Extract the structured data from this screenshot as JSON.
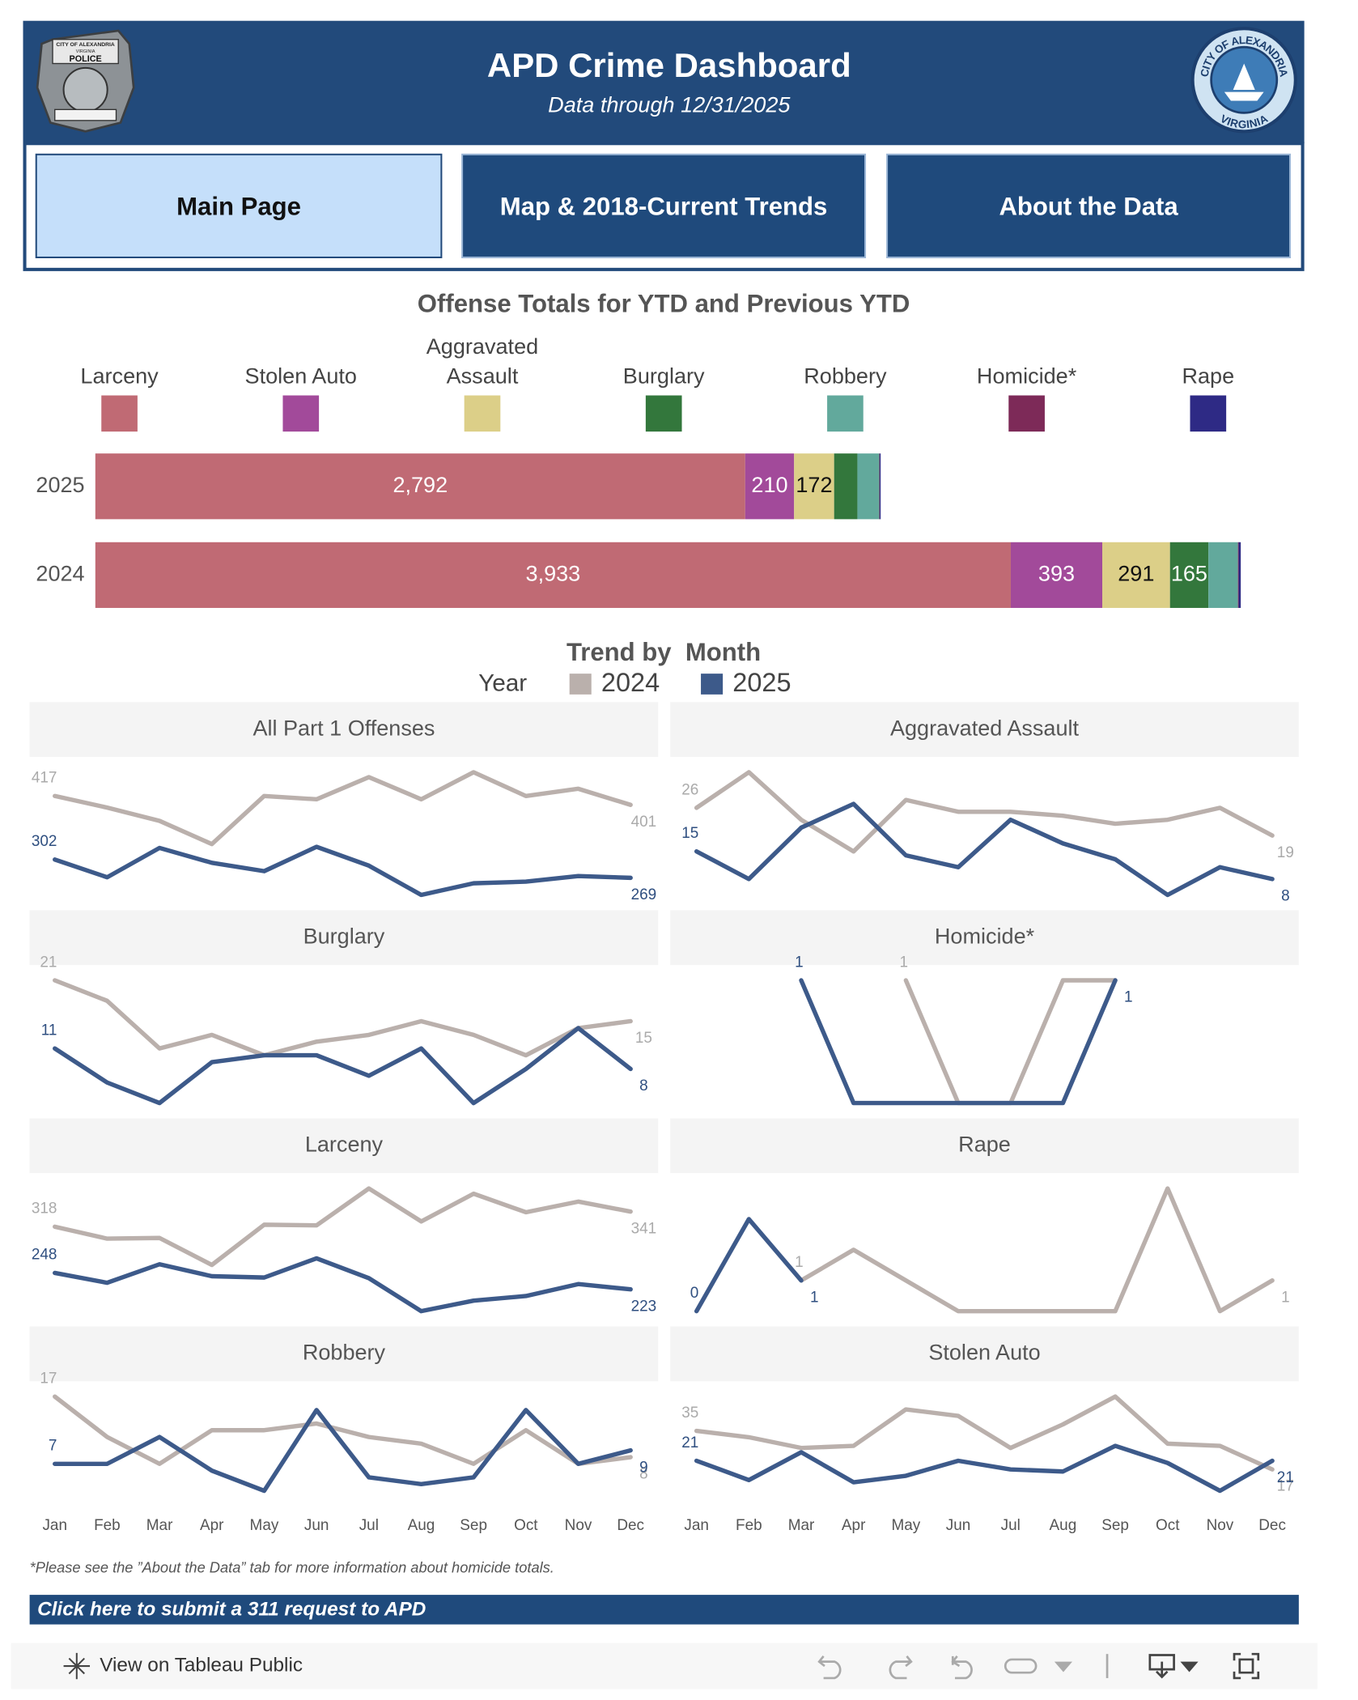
{
  "header": {
    "title": "APD Crime Dashboard",
    "subtitle": "Data through 12/31/2025",
    "badge_text": [
      "CITY OF ALEXANDRIA",
      "VIRGINIA",
      "POLICE"
    ],
    "seal_text": [
      "CITY OF ALEXANDRIA",
      "VIRGINIA"
    ]
  },
  "nav": [
    "Main Page",
    "Map & 2018-Current Trends",
    "About the Data"
  ],
  "chart_data": [
    {
      "type": "bar",
      "orientation": "horizontal",
      "stacked": true,
      "title": "Offense Totals for YTD and Previous YTD",
      "categories": [
        "2025",
        "2024"
      ],
      "series": [
        {
          "name": "Larceny",
          "color": "#c06a74",
          "values": [
            2792,
            3933
          ],
          "value_labels": [
            "2,792",
            "3,933"
          ]
        },
        {
          "name": "Stolen Auto",
          "color": "#a24a9a",
          "values": [
            210,
            393
          ]
        },
        {
          "name": "Aggravated Assault",
          "color": "#dccf88",
          "values": [
            172,
            291
          ]
        },
        {
          "name": "Burglary",
          "color": "#33773c",
          "values": [
            100,
            165
          ]
        },
        {
          "name": "Robbery",
          "color": "#62a99c",
          "values": [
            94,
            127
          ]
        },
        {
          "name": "Homicide*",
          "color": "#7d2a58",
          "values": [
            2,
            3
          ]
        },
        {
          "name": "Rape",
          "color": "#2e2a85",
          "values": [
            4,
            9
          ]
        }
      ]
    },
    {
      "type": "line",
      "title": "Trend by  Month",
      "legend_title": "Year",
      "categories": [
        "Jan",
        "Feb",
        "Mar",
        "Apr",
        "May",
        "Jun",
        "Jul",
        "Aug",
        "Sep",
        "Oct",
        "Nov",
        "Dec"
      ],
      "series": [
        {
          "name": "2024",
          "color": "#bab0ac"
        },
        {
          "name": "2025",
          "color": "#3d5a8a"
        }
      ],
      "panels": [
        {
          "title": "All Part 1 Offenses",
          "values": [
            [
              417,
              396,
              372,
              330,
              417,
              411,
              451,
              411,
              460,
              417,
              430,
              401
            ],
            [
              302,
              270,
              323,
              296,
              281,
              325,
              291,
              238,
              259,
              262,
              272,
              269
            ]
          ]
        },
        {
          "title": "Aggravated Assault",
          "values": [
            [
              26,
              35,
              23,
              15,
              28,
              25,
              25,
              24,
              22,
              23,
              26,
              19
            ],
            [
              15,
              8,
              21,
              27,
              14,
              11,
              23,
              17,
              13,
              4,
              11,
              8
            ]
          ]
        },
        {
          "title": "Burglary",
          "values": [
            [
              21,
              18,
              11,
              13,
              10,
              12,
              13,
              15,
              13,
              10,
              14,
              15
            ],
            [
              11,
              6,
              3,
              9,
              10,
              10,
              7,
              11,
              3,
              8,
              14,
              8
            ]
          ]
        },
        {
          "title": "Homicide*",
          "values": [
            [
              null,
              null,
              null,
              null,
              1,
              0,
              0,
              1,
              1,
              null,
              null,
              null
            ],
            [
              null,
              null,
              1,
              0,
              0,
              0,
              0,
              0,
              1,
              null,
              null,
              null
            ]
          ]
        },
        {
          "title": "Larceny",
          "values": [
            [
              318,
              300,
              301,
              260,
              321,
              320,
              376,
              326,
              368,
              340,
              356,
              341
            ],
            [
              248,
              233,
              261,
              243,
              241,
              270,
              240,
              190,
              206,
              213,
              231,
              223
            ]
          ]
        },
        {
          "title": "Rape",
          "values": [
            [
              null,
              null,
              1,
              2,
              1,
              0,
              0,
              0,
              0,
              4,
              0,
              1
            ],
            [
              0,
              3,
              1,
              null,
              null,
              null,
              null,
              null,
              null,
              null,
              null,
              null
            ]
          ]
        },
        {
          "title": "Robbery",
          "values": [
            [
              17,
              11,
              7,
              12,
              12,
              13,
              11,
              10,
              7,
              12,
              7,
              8
            ],
            [
              7,
              7,
              11,
              6,
              3,
              15,
              5,
              4,
              5,
              15,
              7,
              9
            ]
          ]
        },
        {
          "title": "Stolen Auto",
          "values": [
            [
              35,
              32,
              27,
              28,
              45,
              42,
              27,
              38,
              51,
              29,
              28,
              17
            ],
            [
              21,
              12,
              25,
              11,
              14,
              21,
              17,
              16,
              28,
              20,
              7,
              21
            ]
          ]
        }
      ]
    }
  ],
  "footnote": "*Please see the ”About the Data” tab for more information about homicide totals.",
  "link": "Click here to submit a 311 request to APD",
  "toolbar": {
    "link": "View on Tableau Public"
  }
}
